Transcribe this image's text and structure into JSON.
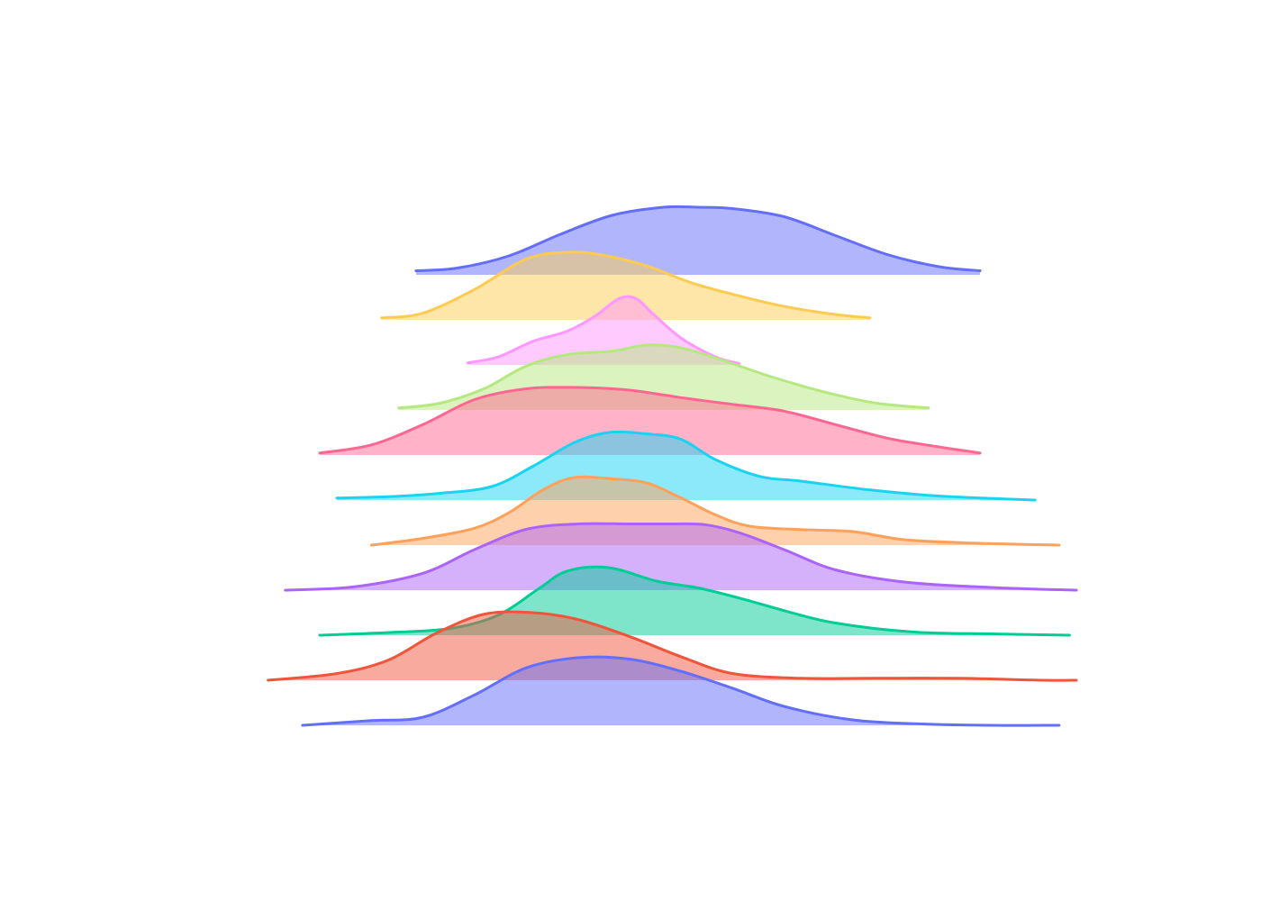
{
  "chart_data": {
    "type": "area",
    "subtype": "ridgeline",
    "title": "",
    "xlabel": "",
    "ylabel": "",
    "grid": false,
    "legend": "none",
    "axes_visible": false,
    "x_range": [
      -1.1,
      1.1
    ],
    "series": [
      {
        "color": "#636efa",
        "x": [
          -0.82,
          -0.7,
          -0.55,
          -0.4,
          -0.25,
          -0.1,
          0.0,
          0.1,
          0.25,
          0.4,
          0.55,
          0.7,
          0.82
        ],
        "y": [
          0.06,
          0.1,
          0.28,
          0.6,
          0.88,
          1.0,
          1.0,
          0.98,
          0.86,
          0.58,
          0.3,
          0.12,
          0.06
        ]
      },
      {
        "color": "#fecb52",
        "x": [
          -0.92,
          -0.8,
          -0.65,
          -0.5,
          -0.38,
          -0.28,
          -0.15,
          -0.02,
          0.1,
          0.25,
          0.4,
          0.5
        ],
        "y": [
          0.03,
          0.1,
          0.45,
          0.9,
          1.0,
          0.96,
          0.8,
          0.55,
          0.38,
          0.2,
          0.08,
          0.03
        ]
      },
      {
        "color": "#ff97ff",
        "x": [
          -0.67,
          -0.58,
          -0.48,
          -0.38,
          -0.3,
          -0.23,
          -0.18,
          -0.13,
          -0.05,
          0.05,
          0.12
        ],
        "y": [
          0.03,
          0.12,
          0.35,
          0.5,
          0.72,
          0.98,
          0.98,
          0.75,
          0.4,
          0.12,
          0.02
        ]
      },
      {
        "color": "#b6e880",
        "x": [
          -0.87,
          -0.75,
          -0.62,
          -0.5,
          -0.38,
          -0.25,
          -0.15,
          -0.05,
          0.08,
          0.22,
          0.38,
          0.52,
          0.67
        ],
        "y": [
          0.03,
          0.1,
          0.32,
          0.65,
          0.82,
          0.87,
          0.96,
          0.92,
          0.72,
          0.48,
          0.25,
          0.1,
          0.03
        ]
      },
      {
        "color": "#ff6692",
        "x": [
          -1.1,
          -0.95,
          -0.8,
          -0.65,
          -0.5,
          -0.35,
          -0.2,
          -0.05,
          0.1,
          0.25,
          0.4,
          0.55,
          0.7,
          0.82
        ],
        "y": [
          0.03,
          0.15,
          0.45,
          0.82,
          0.98,
          1.0,
          0.96,
          0.85,
          0.75,
          0.65,
          0.45,
          0.25,
          0.12,
          0.03
        ]
      },
      {
        "color": "#19d3f3",
        "x": [
          -1.05,
          -0.9,
          -0.75,
          -0.6,
          -0.48,
          -0.36,
          -0.26,
          -0.15,
          -0.05,
          0.05,
          0.18,
          0.3,
          0.5,
          0.7,
          0.98
        ],
        "y": [
          0.03,
          0.05,
          0.1,
          0.2,
          0.5,
          0.85,
          1.0,
          0.98,
          0.9,
          0.6,
          0.35,
          0.28,
          0.15,
          0.06,
          0.0
        ]
      },
      {
        "color": "#ffa15a",
        "x": [
          -0.95,
          -0.8,
          -0.65,
          -0.55,
          -0.45,
          -0.36,
          -0.25,
          -0.15,
          -0.05,
          0.05,
          0.15,
          0.3,
          0.45,
          0.6,
          0.8,
          1.05
        ],
        "y": [
          0.0,
          0.1,
          0.25,
          0.48,
          0.82,
          1.0,
          0.98,
          0.92,
          0.7,
          0.45,
          0.28,
          0.23,
          0.2,
          0.08,
          0.03,
          0.0
        ]
      },
      {
        "color": "#ab63fa",
        "x": [
          -1.2,
          -1.0,
          -0.8,
          -0.65,
          -0.5,
          -0.35,
          -0.2,
          -0.08,
          0.02,
          0.12,
          0.25,
          0.4,
          0.6,
          0.85,
          1.1
        ],
        "y": [
          0.0,
          0.05,
          0.25,
          0.6,
          0.9,
          0.98,
          0.98,
          0.98,
          0.97,
          0.85,
          0.6,
          0.3,
          0.12,
          0.04,
          0.0
        ]
      },
      {
        "color": "#00cc96",
        "x": [
          -1.1,
          -0.9,
          -0.72,
          -0.58,
          -0.46,
          -0.38,
          -0.26,
          -0.12,
          0.0,
          0.12,
          0.26,
          0.4,
          0.62,
          0.85,
          1.08
        ],
        "y": [
          0.0,
          0.04,
          0.1,
          0.3,
          0.7,
          0.95,
          1.0,
          0.8,
          0.7,
          0.55,
          0.35,
          0.18,
          0.05,
          0.02,
          0.0
        ]
      },
      {
        "color": "#ef553b",
        "x": [
          -1.25,
          -1.05,
          -0.9,
          -0.76,
          -0.62,
          -0.48,
          -0.35,
          -0.2,
          -0.05,
          0.1,
          0.3,
          0.5,
          0.75,
          1.0,
          1.1
        ],
        "y": [
          0.0,
          0.1,
          0.3,
          0.7,
          0.98,
          1.0,
          0.9,
          0.65,
          0.35,
          0.1,
          0.03,
          0.03,
          0.03,
          0.0,
          0.0
        ]
      },
      {
        "color": "#636efa",
        "x": [
          -1.15,
          -0.95,
          -0.8,
          -0.65,
          -0.5,
          -0.35,
          -0.2,
          -0.05,
          0.1,
          0.25,
          0.45,
          0.65,
          0.85,
          1.05
        ],
        "y": [
          0.0,
          0.07,
          0.12,
          0.45,
          0.85,
          1.0,
          0.98,
          0.8,
          0.55,
          0.28,
          0.08,
          0.02,
          0.0,
          0.0
        ]
      }
    ]
  }
}
